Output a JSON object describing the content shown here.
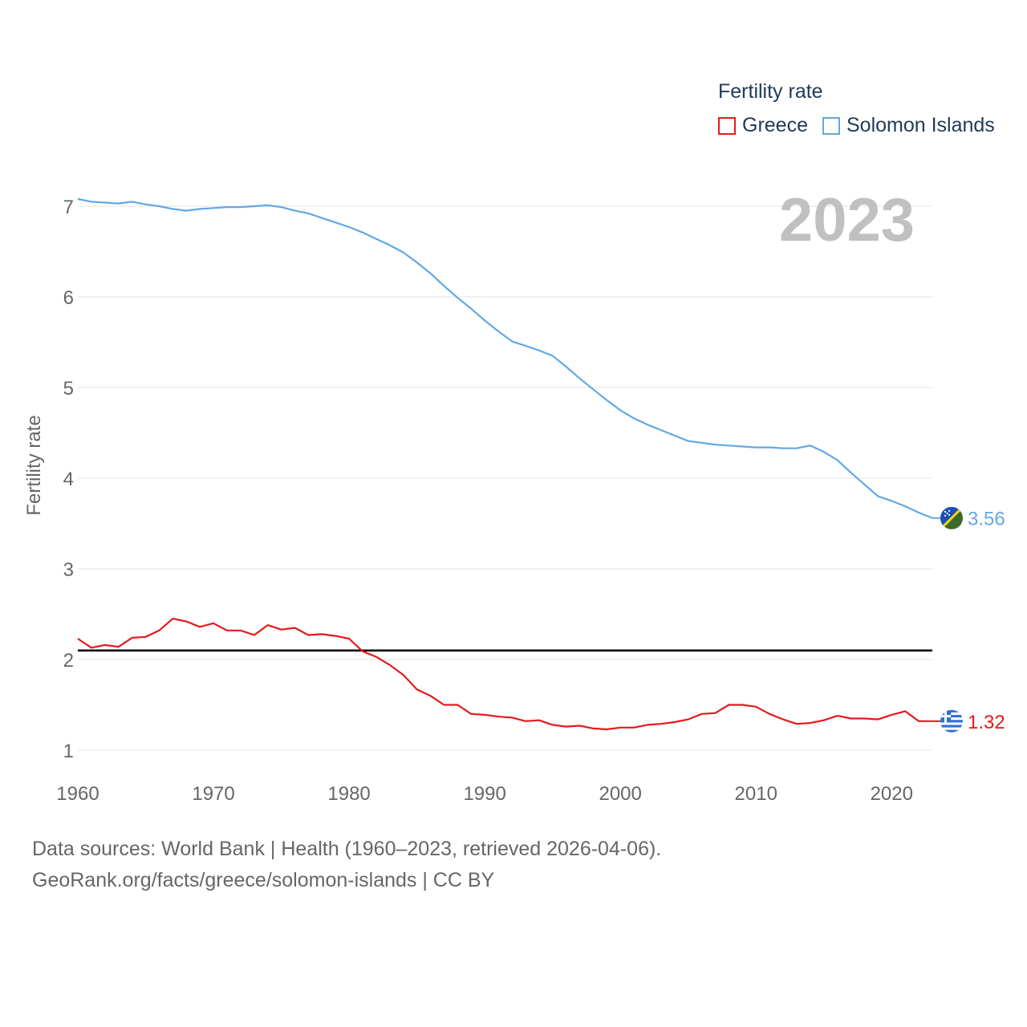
{
  "legend": {
    "title": "Fertility rate",
    "items": [
      {
        "label": "Greece",
        "color": "#e41a1c"
      },
      {
        "label": "Solomon Islands",
        "color": "#62a8e5"
      }
    ]
  },
  "year_label": "2023",
  "footer": {
    "line1": "Data sources: World Bank | Health (1960–2023, retrieved 2026-04-06).",
    "line2": "GeoRank.org/facts/greece/solomon-islands | CC BY"
  },
  "chart_data": {
    "type": "line",
    "title": "Fertility rate",
    "ylabel": "Fertility rate",
    "xlabel": "",
    "xlim": [
      1960,
      2023
    ],
    "ylim": [
      0.75,
      7.3
    ],
    "x_ticks": [
      1960,
      1970,
      1980,
      1990,
      2000,
      2010,
      2020
    ],
    "y_ticks": [
      1,
      2,
      3,
      4,
      5,
      6,
      7
    ],
    "grid": true,
    "reference_line": {
      "y": 2.1,
      "color": "#000000"
    },
    "x": [
      1960,
      1961,
      1962,
      1963,
      1964,
      1965,
      1966,
      1967,
      1968,
      1969,
      1970,
      1971,
      1972,
      1973,
      1974,
      1975,
      1976,
      1977,
      1978,
      1979,
      1980,
      1981,
      1982,
      1983,
      1984,
      1985,
      1986,
      1987,
      1988,
      1989,
      1990,
      1991,
      1992,
      1993,
      1994,
      1995,
      1996,
      1997,
      1998,
      1999,
      2000,
      2001,
      2002,
      2003,
      2004,
      2005,
      2006,
      2007,
      2008,
      2009,
      2010,
      2011,
      2012,
      2013,
      2014,
      2015,
      2016,
      2017,
      2018,
      2019,
      2020,
      2021,
      2022,
      2023
    ],
    "series": [
      {
        "name": "Greece",
        "color": "#e41a1c",
        "end_label": "1.32",
        "values": [
          2.23,
          2.13,
          2.16,
          2.14,
          2.24,
          2.25,
          2.32,
          2.45,
          2.42,
          2.36,
          2.4,
          2.32,
          2.32,
          2.27,
          2.38,
          2.33,
          2.35,
          2.27,
          2.28,
          2.26,
          2.23,
          2.09,
          2.03,
          1.94,
          1.83,
          1.67,
          1.6,
          1.5,
          1.5,
          1.4,
          1.39,
          1.37,
          1.36,
          1.32,
          1.33,
          1.28,
          1.26,
          1.27,
          1.24,
          1.23,
          1.25,
          1.25,
          1.28,
          1.29,
          1.31,
          1.34,
          1.4,
          1.41,
          1.5,
          1.5,
          1.48,
          1.4,
          1.34,
          1.29,
          1.3,
          1.33,
          1.38,
          1.35,
          1.35,
          1.34,
          1.39,
          1.43,
          1.32,
          1.32
        ]
      },
      {
        "name": "Solomon Islands",
        "color": "#62a8e5",
        "end_label": "3.56",
        "values": [
          7.08,
          7.05,
          7.04,
          7.03,
          7.05,
          7.02,
          7.0,
          6.97,
          6.95,
          6.97,
          6.98,
          6.99,
          6.99,
          7.0,
          7.01,
          6.99,
          6.95,
          6.92,
          6.87,
          6.82,
          6.77,
          6.71,
          6.64,
          6.57,
          6.49,
          6.38,
          6.26,
          6.12,
          5.99,
          5.87,
          5.74,
          5.62,
          5.51,
          5.46,
          5.41,
          5.35,
          5.23,
          5.1,
          4.98,
          4.86,
          4.75,
          4.66,
          4.59,
          4.53,
          4.47,
          4.41,
          4.39,
          4.37,
          4.36,
          4.35,
          4.34,
          4.34,
          4.33,
          4.33,
          4.36,
          4.29,
          4.2,
          4.06,
          3.93,
          3.8,
          3.75,
          3.69,
          3.62,
          3.56
        ]
      }
    ]
  }
}
